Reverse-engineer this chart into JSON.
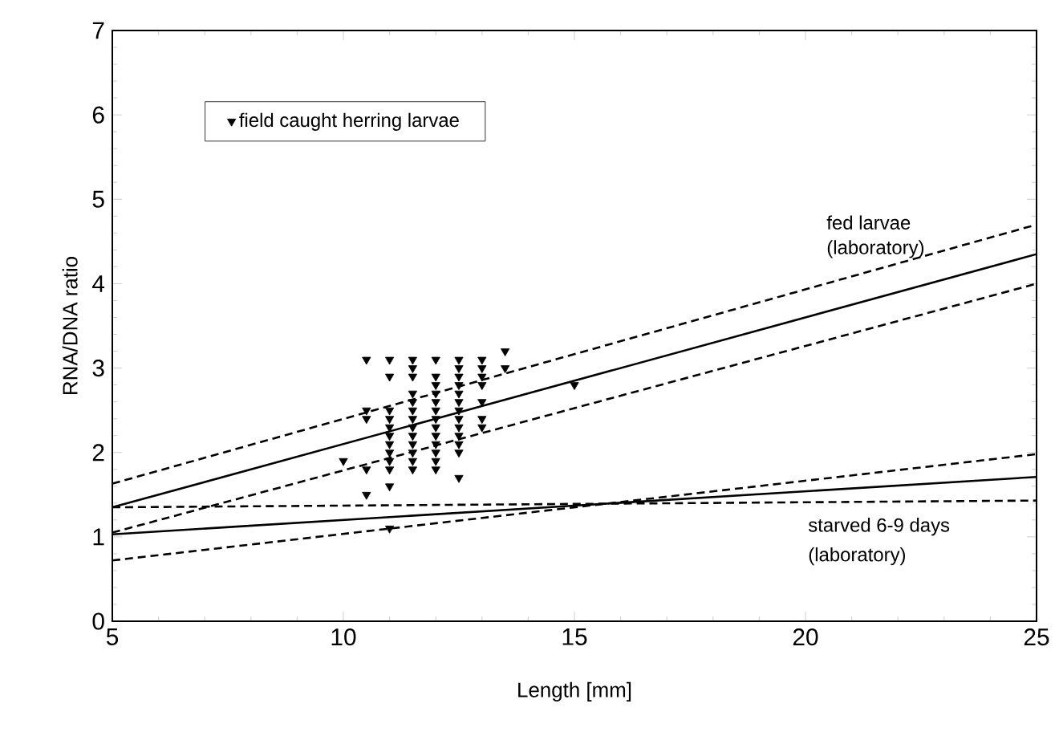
{
  "chart_data": {
    "type": "scatter",
    "xlabel": "Length [mm]",
    "ylabel": "RNA/DNA ratio",
    "xlim": [
      5,
      25
    ],
    "xticks": [
      5,
      10,
      15,
      20,
      25
    ],
    "ylim": [
      0,
      7
    ],
    "yticks": [
      0,
      1,
      2,
      3,
      4,
      5,
      6,
      7
    ],
    "grid": false,
    "legend": "top left",
    "series": [
      {
        "name": "field caught herring larvae",
        "marker": "triangle",
        "color": "#000000",
        "x": [
          10,
          10.5,
          10.5,
          10.5,
          10.5,
          10.5,
          11,
          11,
          11,
          11,
          11,
          11,
          11,
          11,
          11,
          11,
          11,
          11,
          11.5,
          11.5,
          11.5,
          11.5,
          11.5,
          11.5,
          11.5,
          11.5,
          11.5,
          11.5,
          11.5,
          11.5,
          11.5,
          12,
          12,
          12,
          12,
          12,
          12,
          12,
          12,
          12,
          12,
          12,
          12,
          12,
          12.5,
          12.5,
          12.5,
          12.5,
          12.5,
          12.5,
          12.5,
          12.5,
          12.5,
          12.5,
          12.5,
          12.5,
          12.5,
          13,
          13,
          13,
          13,
          13,
          13,
          13,
          13.5,
          13.5,
          15
        ],
        "values": [
          1.9,
          3.1,
          2.5,
          2.4,
          1.5,
          1.8,
          3.1,
          2.9,
          2.5,
          2.4,
          2.3,
          2.2,
          2.1,
          2.0,
          1.9,
          1.8,
          1.6,
          1.1,
          3.1,
          3.0,
          2.9,
          2.7,
          2.6,
          2.5,
          2.4,
          2.3,
          2.2,
          2.1,
          2.0,
          1.9,
          1.8,
          3.1,
          2.9,
          2.8,
          2.7,
          2.6,
          2.5,
          2.4,
          2.3,
          2.2,
          2.1,
          2.0,
          1.9,
          1.8,
          3.1,
          3.0,
          2.9,
          2.8,
          2.7,
          2.6,
          2.5,
          2.4,
          2.3,
          2.2,
          2.1,
          2.0,
          1.7,
          3.1,
          3.0,
          2.9,
          2.8,
          2.6,
          2.4,
          2.3,
          3.2,
          3.0,
          2.8
        ]
      },
      {
        "type": "line",
        "line_style": "solid",
        "color": "#000000",
        "x": [
          5,
          25
        ],
        "values": [
          1.35,
          4.35
        ]
      },
      {
        "type": "line",
        "line_style": "dashed",
        "color": "#000000",
        "x": [
          5,
          25
        ],
        "values": [
          1.63,
          4.7
        ]
      },
      {
        "type": "line",
        "line_style": "dashed",
        "color": "#000000",
        "x": [
          5,
          25
        ],
        "values": [
          1.05,
          4.0
        ]
      },
      {
        "type": "line",
        "line_style": "solid",
        "color": "#000000",
        "x": [
          5,
          25
        ],
        "values": [
          1.03,
          1.71
        ]
      },
      {
        "type": "line",
        "line_style": "dashed",
        "color": "#000000",
        "x": [
          5,
          25
        ],
        "values": [
          1.35,
          1.43
        ]
      },
      {
        "type": "line",
        "line_style": "dashed",
        "color": "#000000",
        "x": [
          5,
          25
        ],
        "values": [
          0.72,
          1.98
        ]
      }
    ],
    "annotations": [
      "fed larvae",
      "(laboratory)",
      "starved 6-9 days",
      "(laboratory)"
    ]
  }
}
